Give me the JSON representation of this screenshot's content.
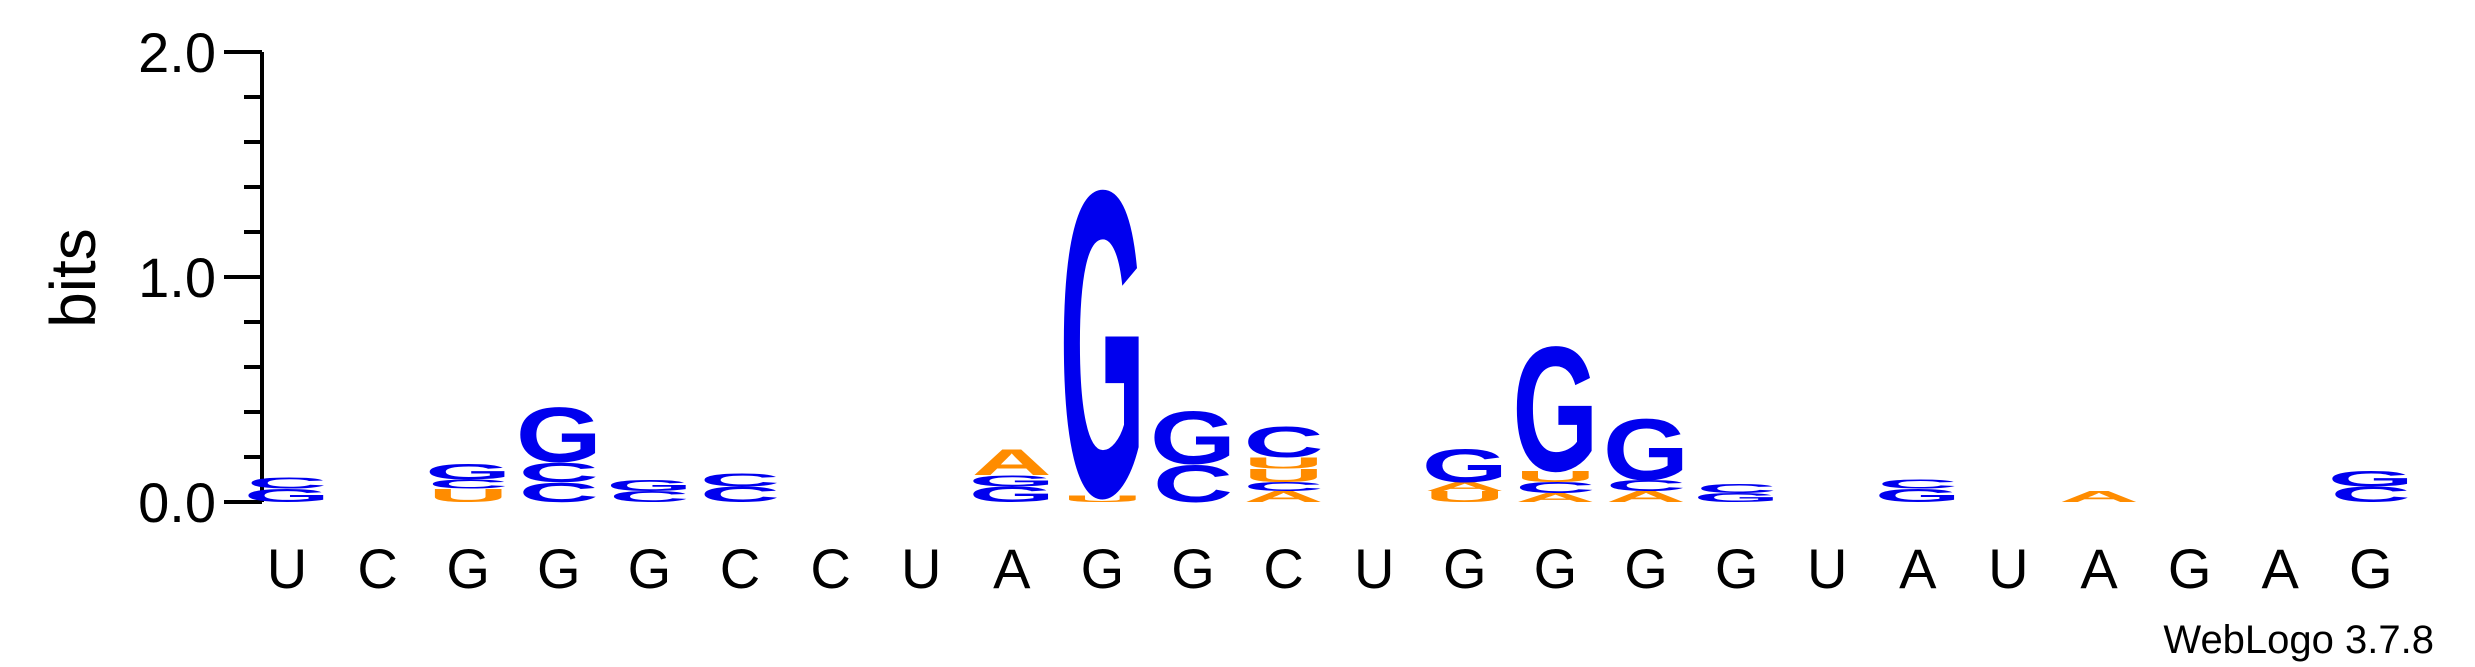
{
  "chart_data": {
    "type": "sequence-logo",
    "ylabel": "bits",
    "ylim": [
      0,
      2
    ],
    "yticks": [
      "0.0",
      "1.0",
      "2.0"
    ],
    "ytick_values": [
      0,
      1,
      2
    ],
    "credit": "WebLogo 3.7.8",
    "colors": {
      "G": "#0000ee",
      "C": "#0000ee",
      "A": "#ff8c00",
      "U": "#ff8c00"
    },
    "positions": [
      {
        "label": "U",
        "stack": [
          [
            "G",
            0.06
          ],
          [
            "C",
            0.05
          ]
        ]
      },
      {
        "label": "C",
        "stack": []
      },
      {
        "label": "G",
        "stack": [
          [
            "U",
            0.06
          ],
          [
            "C",
            0.04
          ],
          [
            "G",
            0.07
          ]
        ]
      },
      {
        "label": "G",
        "stack": [
          [
            "C",
            0.09
          ],
          [
            "C",
            0.09
          ],
          [
            "G",
            0.25
          ]
        ]
      },
      {
        "label": "G",
        "stack": [
          [
            "C",
            0.05
          ],
          [
            "G",
            0.05
          ]
        ]
      },
      {
        "label": "C",
        "stack": [
          [
            "C",
            0.07
          ],
          [
            "C",
            0.06
          ]
        ]
      },
      {
        "label": "C",
        "stack": []
      },
      {
        "label": "U",
        "stack": []
      },
      {
        "label": "A",
        "stack": [
          [
            "G",
            0.07
          ],
          [
            "G",
            0.05
          ],
          [
            "A",
            0.12
          ]
        ]
      },
      {
        "label": "G",
        "stack": [
          [
            "U",
            0.03
          ],
          [
            "G",
            1.4
          ]
        ]
      },
      {
        "label": "G",
        "stack": [
          [
            "C",
            0.17
          ],
          [
            "G",
            0.24
          ]
        ]
      },
      {
        "label": "C",
        "stack": [
          [
            "A",
            0.05
          ],
          [
            "C",
            0.04
          ],
          [
            "U",
            0.06
          ],
          [
            "U",
            0.05
          ],
          [
            "C",
            0.14
          ]
        ]
      },
      {
        "label": "U",
        "stack": []
      },
      {
        "label": "G",
        "stack": [
          [
            "U",
            0.05
          ],
          [
            "A",
            0.04
          ],
          [
            "G",
            0.15
          ]
        ]
      },
      {
        "label": "G",
        "stack": [
          [
            "A",
            0.04
          ],
          [
            "C",
            0.05
          ],
          [
            "U",
            0.05
          ],
          [
            "G",
            0.57
          ]
        ]
      },
      {
        "label": "G",
        "stack": [
          [
            "A",
            0.05
          ],
          [
            "C",
            0.05
          ],
          [
            "G",
            0.28
          ]
        ]
      },
      {
        "label": "G",
        "stack": [
          [
            "G",
            0.04
          ],
          [
            "C",
            0.04
          ]
        ]
      },
      {
        "label": "U",
        "stack": []
      },
      {
        "label": "A",
        "stack": [
          [
            "G",
            0.06
          ],
          [
            "C",
            0.04
          ]
        ]
      },
      {
        "label": "U",
        "stack": []
      },
      {
        "label": "A",
        "stack": [
          [
            "A",
            0.05
          ]
        ]
      },
      {
        "label": "G",
        "stack": []
      },
      {
        "label": "A",
        "stack": []
      },
      {
        "label": "G",
        "stack": [
          [
            "C",
            0.07
          ],
          [
            "G",
            0.07
          ]
        ]
      }
    ]
  }
}
